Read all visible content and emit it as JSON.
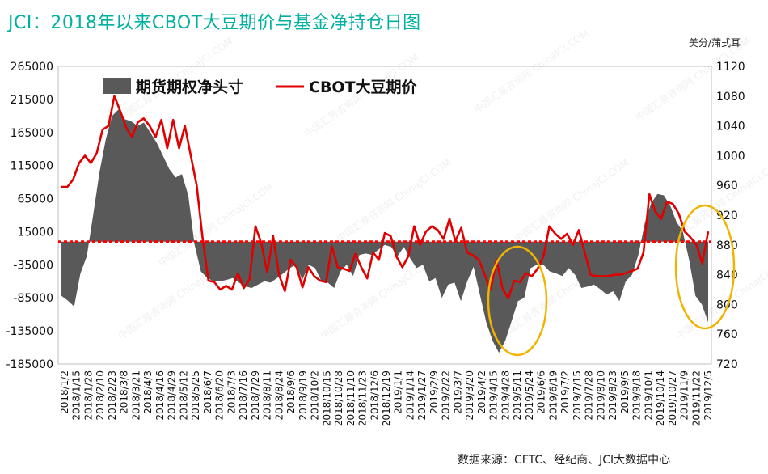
{
  "title": "JCI：2018年以来CBOT大豆期价与基金净持仓日图",
  "unit_label": "美分/蒲式耳",
  "source": "数据来源：CFTC、经纪商、JCI大数据中心",
  "watermark": "中国汇易咨询网 ChinaJCI.COM",
  "colors": {
    "area": "#595959",
    "line": "#e00000",
    "title": "#00b0a0",
    "circle": "#f0b400",
    "grid": "#d9d9d9"
  },
  "chart_data": {
    "type": "area+line",
    "legend": {
      "position": "top-left",
      "entries": [
        "期货期权净头寸",
        "CBOT大豆期价"
      ]
    },
    "x_ticks": [
      "2018/1/2",
      "2018/1/15",
      "2018/1/28",
      "2018/2/10",
      "2018/2/23",
      "2018/3/8",
      "2018/3/21",
      "2018/4/3",
      "2018/4/16",
      "2018/4/29",
      "2018/5/12",
      "2018/5/25",
      "2018/6/7",
      "2018/6/20",
      "2018/7/3",
      "2018/7/16",
      "2018/7/29",
      "2018/8/11",
      "2018/8/24",
      "2018/9/6",
      "2018/9/19",
      "2018/10/2",
      "2018/10/15",
      "2018/10/28",
      "2018/11/10",
      "2018/11/23",
      "2018/12/6",
      "2018/12/19",
      "2019/1/1",
      "2019/1/14",
      "2019/1/27",
      "2019/2/9",
      "2019/2/22",
      "2019/3/7",
      "2019/3/20",
      "2019/4/2",
      "2019/4/15",
      "2019/4/28",
      "2019/5/11",
      "2019/5/24",
      "2019/6/6",
      "2019/6/19",
      "2019/7/2",
      "2019/7/15",
      "2019/7/28",
      "2019/8/10",
      "2019/8/23",
      "2019/9/5",
      "2019/9/18",
      "2019/10/1",
      "2019/10/14",
      "2019/10/27",
      "2019/11/9",
      "2019/11/22",
      "2019/12/5"
    ],
    "left_axis": {
      "min": -185000,
      "max": 265000,
      "ticks": [
        265000,
        215000,
        165000,
        115000,
        65000,
        15000,
        -35000,
        -85000,
        -135000,
        -185000
      ]
    },
    "right_axis": {
      "min": 720,
      "max": 1120,
      "ticks": [
        1120,
        1080,
        1040,
        1000,
        960,
        920,
        880,
        840,
        800,
        760,
        720
      ]
    },
    "series": [
      {
        "name": "期货期权净头寸",
        "axis": "left",
        "type": "area",
        "values": [
          -82000,
          -89000,
          -98000,
          -48000,
          -22000,
          40000,
          105000,
          155000,
          190000,
          200000,
          185000,
          182000,
          175000,
          180000,
          165000,
          150000,
          130000,
          110000,
          97000,
          102000,
          70000,
          -5000,
          -45000,
          -55000,
          -60000,
          -60000,
          -58000,
          -55000,
          -62000,
          -68000,
          -70000,
          -65000,
          -60000,
          -62000,
          -55000,
          -48000,
          -40000,
          -35000,
          -58000,
          -35000,
          -40000,
          -60000,
          -62000,
          -70000,
          -45000,
          -35000,
          -52000,
          -20000,
          -18000,
          -20000,
          -12000,
          -5000,
          -8000,
          -22000,
          -8000,
          -25000,
          -40000,
          -35000,
          -60000,
          -55000,
          -85000,
          -65000,
          -62000,
          -90000,
          -60000,
          -38000,
          -80000,
          -122000,
          -150000,
          -168000,
          -150000,
          -120000,
          -90000,
          -85000,
          -40000,
          -35000,
          -35000,
          -45000,
          -48000,
          -52000,
          -40000,
          -50000,
          -70000,
          -68000,
          -65000,
          -72000,
          -80000,
          -75000,
          -90000,
          -60000,
          -50000,
          -20000,
          28000,
          58000,
          72000,
          70000,
          55000,
          30000,
          15000,
          -28000,
          -82000,
          -95000,
          -122000
        ]
      },
      {
        "name": "CBOT大豆期价",
        "axis": "right",
        "type": "line",
        "values": [
          958,
          958,
          968,
          990,
          1000,
          990,
          1003,
          1035,
          1040,
          1080,
          1060,
          1038,
          1025,
          1045,
          1050,
          1040,
          1025,
          1048,
          1010,
          1048,
          1010,
          1040,
          1000,
          960,
          890,
          832,
          830,
          820,
          825,
          820,
          842,
          822,
          834,
          905,
          882,
          843,
          892,
          840,
          818,
          860,
          850,
          823,
          850,
          838,
          832,
          830,
          878,
          850,
          848,
          845,
          868,
          850,
          835,
          870,
          860,
          896,
          892,
          864,
          850,
          865,
          905,
          880,
          898,
          905,
          900,
          888,
          915,
          885,
          903,
          870,
          866,
          860,
          840,
          820,
          860,
          822,
          808,
          832,
          830,
          842,
          838,
          848,
          865,
          905,
          895,
          888,
          895,
          880,
          900,
          870,
          840,
          838,
          838,
          838,
          840,
          840,
          842,
          845,
          848,
          870,
          948,
          925,
          915,
          938,
          935,
          922,
          898,
          890,
          880,
          855,
          898
        ]
      }
    ],
    "annotations": [
      {
        "type": "ellipse",
        "near": "2019/5/11",
        "note": "highlight"
      },
      {
        "type": "ellipse",
        "near": "2019/12/5",
        "note": "highlight"
      }
    ]
  }
}
